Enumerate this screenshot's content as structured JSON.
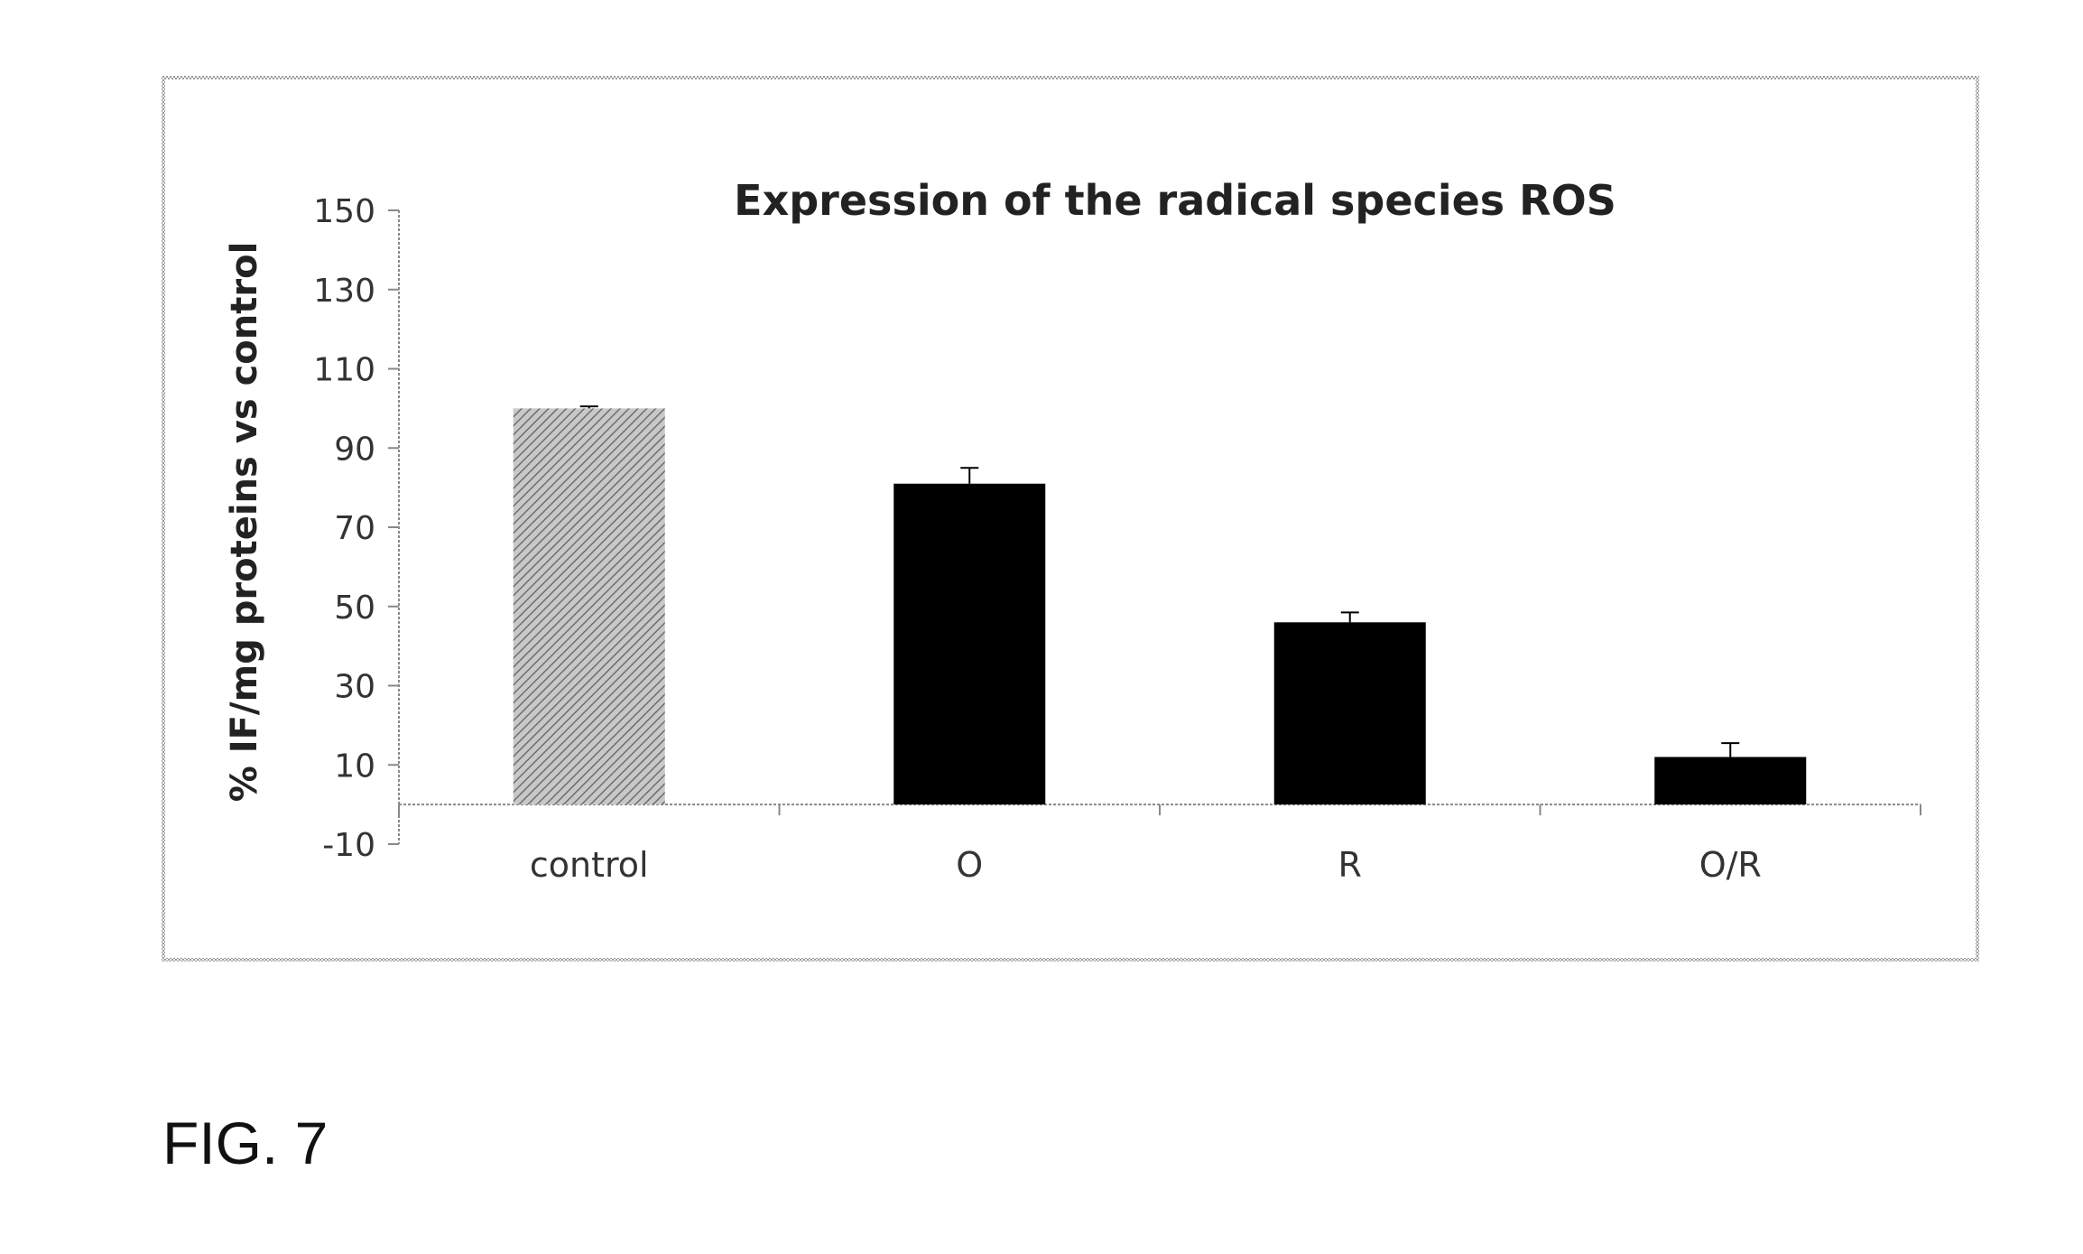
{
  "figure_label": "FIG. 7",
  "chart_data": {
    "type": "bar",
    "title": "Expression of the radical species ROS",
    "ylabel": "% IF/mg proteins vs control",
    "xlabel": "",
    "categories": [
      "control",
      "O",
      "R",
      "O/R"
    ],
    "values": [
      100,
      81,
      46,
      12
    ],
    "errors": [
      0.5,
      4,
      2.5,
      3.5
    ],
    "ylim": [
      -10,
      150
    ],
    "yticks": [
      -10,
      10,
      30,
      50,
      70,
      90,
      110,
      130,
      150
    ],
    "ytick_labels": [
      "-10",
      "10",
      "30",
      "50",
      "70",
      "90",
      "110",
      "130",
      "150"
    ],
    "bar_styles": [
      "hatched-gray",
      "solid-black",
      "solid-black",
      "solid-black"
    ],
    "colors": {
      "control_fill": "#b5b5b5",
      "treated_fill": "#000000",
      "axis": "#888888",
      "frame": "#999999"
    },
    "grid": false,
    "legend": "none"
  }
}
